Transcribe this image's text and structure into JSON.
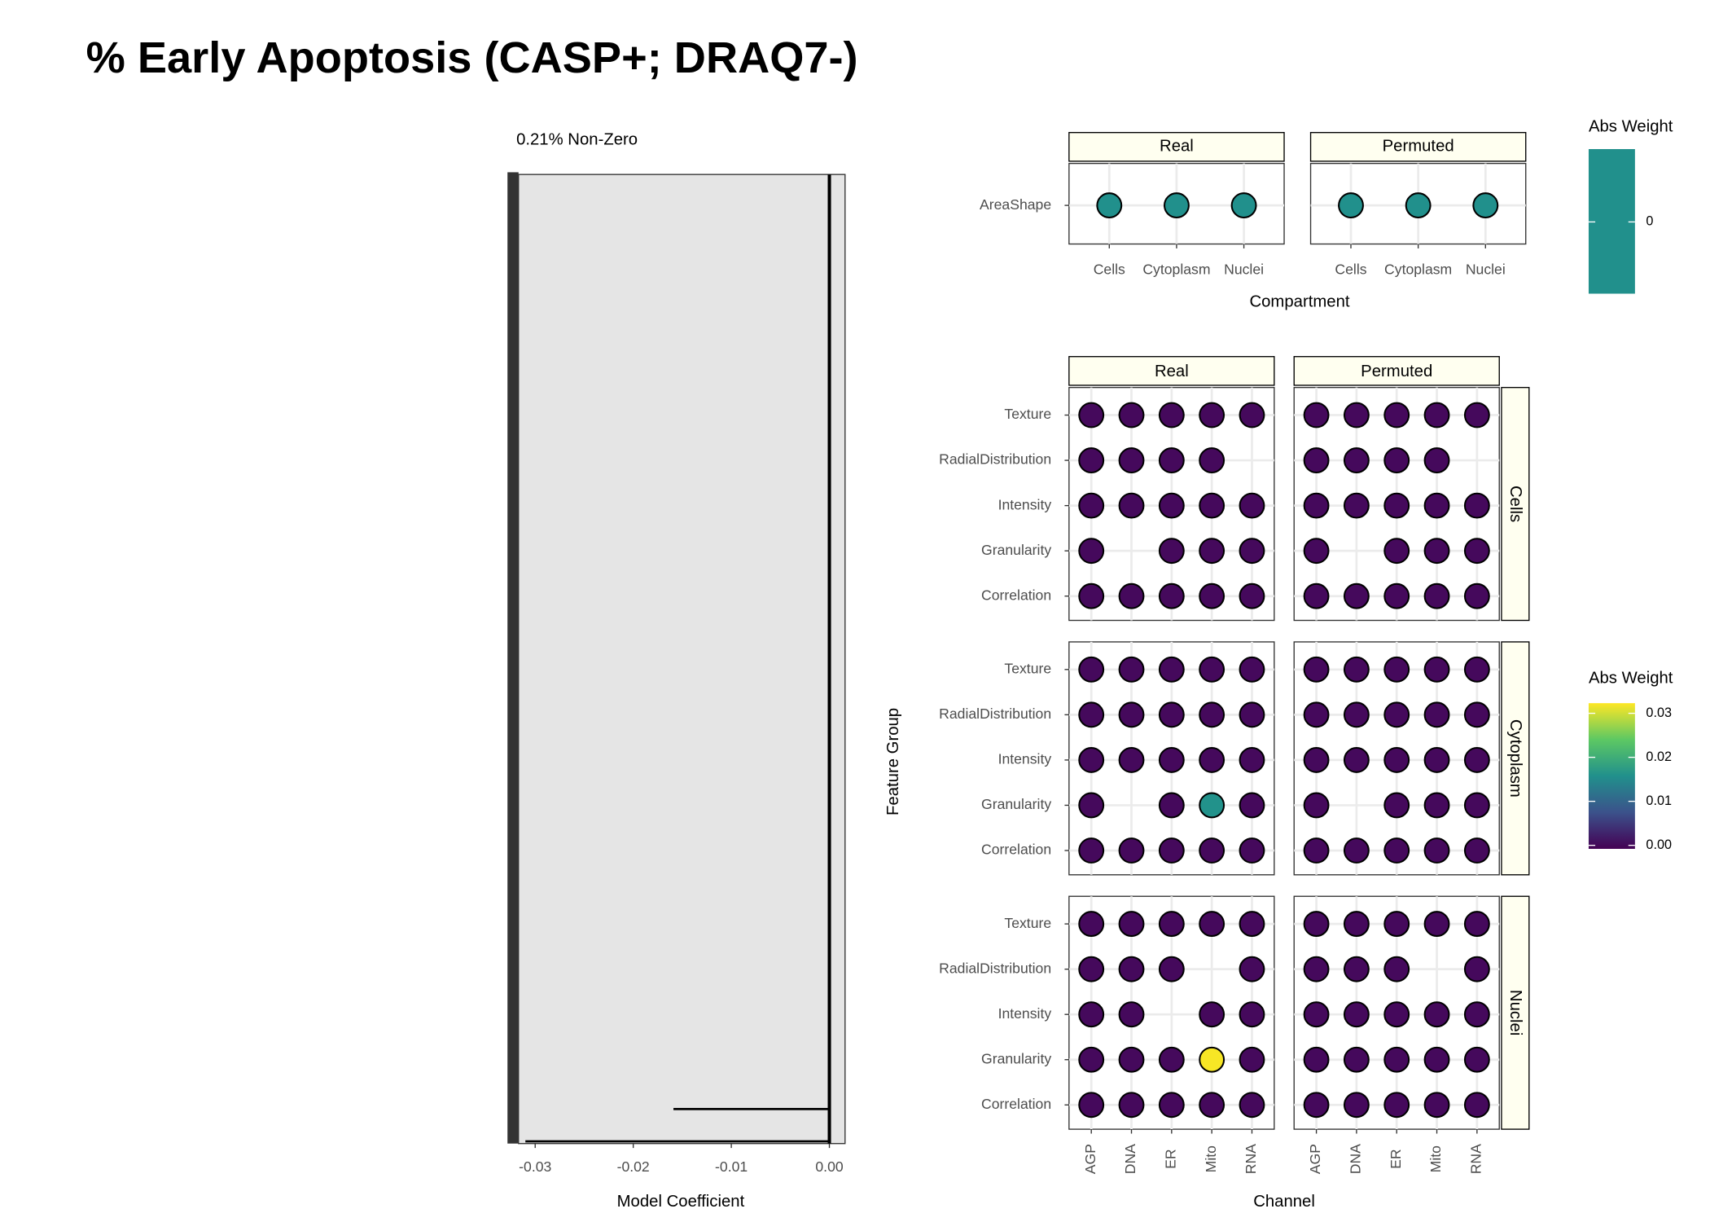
{
  "chart_data": [
    {
      "type": "hbar",
      "title": "% Early Apoptosis (CASP+; DRAQ7-)",
      "subtitle": "0.21% Non-Zero",
      "xlabel": "Model Coefficient",
      "categories": [
        null,
        null,
        null,
        null,
        null,
        null,
        null,
        null,
        null,
        null,
        null,
        null,
        null,
        null,
        null,
        null,
        null,
        null,
        null,
        null,
        null,
        null,
        null,
        null,
        null,
        null,
        null,
        null,
        null,
        null
      ],
      "values": [
        0,
        0,
        0,
        0,
        0,
        0,
        0,
        0,
        0,
        0,
        0,
        0,
        0,
        0,
        0,
        0,
        0,
        0,
        0,
        0,
        0,
        0,
        0,
        0,
        0,
        0,
        0,
        0,
        -0.0159,
        -0.031
      ],
      "color": "#000000",
      "xlim": [
        -0.0317,
        0.0016
      ],
      "xticks": [
        -0.03,
        -0.02,
        -0.01,
        {
          "value": 0,
          "label": "0.00"
        }
      ]
    },
    {
      "type": "dot",
      "facets": [
        "Real",
        "Permuted"
      ],
      "categories": [
        "Cells",
        "Cytoplasm",
        "Nuclei"
      ],
      "y_categories": [
        "AreaShape"
      ],
      "values": [
        [
          [
            0,
            0,
            0
          ]
        ],
        [
          [
            0,
            0,
            0
          ]
        ]
      ],
      "color": "#21908c",
      "xlabel": "Compartment",
      "legend_title": "Abs Weight",
      "colorbar_ticks": [
        0
      ]
    },
    {
      "type": "dot-grid",
      "col_facets": [
        "Real",
        "Permuted"
      ],
      "row_facets": [
        "Cells",
        "Cytoplasm",
        "Nuclei"
      ],
      "x": [
        "AGP",
        "DNA",
        "ER",
        "Mito",
        "RNA"
      ],
      "y": [
        "Correlation",
        "Granularity",
        "Intensity",
        "RadialDistribution",
        "Texture"
      ],
      "values": [
        [
          [
            [
              0,
              0,
              0,
              0,
              0
            ],
            [
              0,
              null,
              0,
              0,
              0
            ],
            [
              0,
              0,
              0,
              0,
              0
            ],
            [
              0,
              0,
              0,
              0,
              null
            ],
            [
              0,
              0,
              0,
              0,
              0
            ]
          ],
          [
            [
              0,
              0,
              0,
              0,
              0
            ],
            [
              0,
              null,
              0,
              0,
              0
            ],
            [
              0,
              0,
              0,
              0,
              0
            ],
            [
              0,
              0,
              0,
              0,
              null
            ],
            [
              0,
              0,
              0,
              0,
              0
            ]
          ]
        ],
        [
          [
            [
              0,
              0,
              0,
              0,
              0
            ],
            [
              0,
              null,
              0,
              0.016,
              0
            ],
            [
              0,
              0,
              0,
              0,
              0
            ],
            [
              0,
              0,
              0,
              0,
              0
            ],
            [
              0,
              0,
              0,
              0,
              0
            ]
          ],
          [
            [
              0,
              0,
              0,
              0,
              0
            ],
            [
              0,
              null,
              0,
              0,
              0
            ],
            [
              0,
              0,
              0,
              0,
              0
            ],
            [
              0,
              0,
              0,
              0,
              0
            ],
            [
              0,
              0,
              0,
              0,
              0
            ]
          ]
        ],
        [
          [
            [
              0,
              0,
              0,
              0,
              0
            ],
            [
              0,
              0,
              0,
              0.032,
              0
            ],
            [
              0,
              0,
              null,
              0,
              0
            ],
            [
              0,
              0,
              0,
              null,
              0
            ],
            [
              0,
              0,
              0,
              0,
              0
            ]
          ],
          [
            [
              0,
              0,
              0,
              0,
              0
            ],
            [
              0,
              0,
              0,
              0,
              0
            ],
            [
              0,
              0,
              0,
              0,
              0
            ],
            [
              0,
              0,
              0,
              null,
              0
            ],
            [
              0,
              0,
              0,
              0,
              0
            ]
          ]
        ]
      ],
      "xlabel": "Channel",
      "ylabel": "Feature Group",
      "legend_title": "Abs Weight",
      "clim": [
        -0.0008,
        0.0323
      ],
      "colorbar_ticks": [
        {
          "value": 0,
          "label": "0.00"
        },
        0.01,
        0.02,
        0.03
      ]
    }
  ]
}
